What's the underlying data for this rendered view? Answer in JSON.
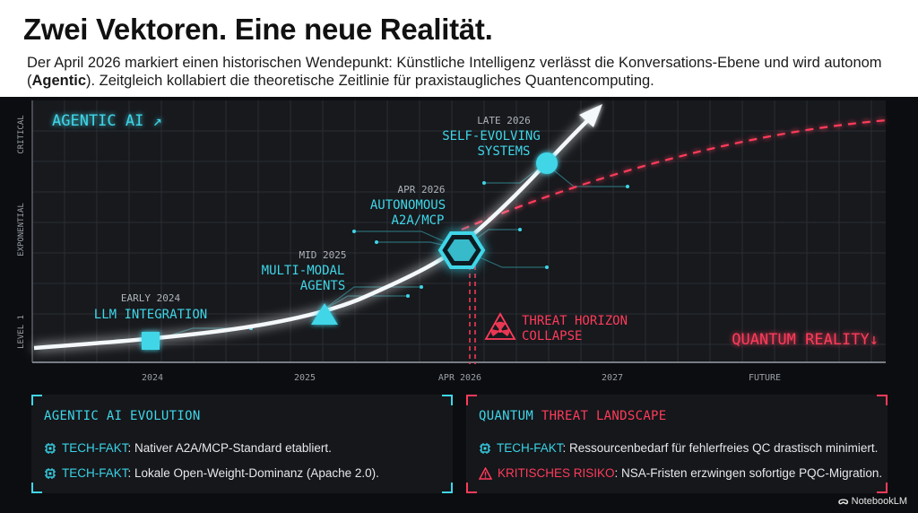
{
  "header": {
    "title": "Zwei Vektoren. Eine neue Realität.",
    "subtitle_part1": "Der April 2026 markiert einen historischen Wendepunkt: Künstliche Intelligenz verlässt die Konversations-Ebene und wird autonom (",
    "subtitle_bold": "Agentic",
    "subtitle_part2": "). Zeitgleich kollabiert die theoretische Zeitlinie für praxistaugliches Quantencomputing."
  },
  "chart": {
    "agentic_label": "AGENTIC AI ↗",
    "quantum_label": "QUANTUM REALITY↓",
    "y_axis_labels": [
      "CRITICAL",
      "EXPONENTIAL",
      "LEVEL 1"
    ],
    "x_axis_labels": [
      "2024",
      "2025",
      "APR 2026",
      "2027",
      "FUTURE"
    ],
    "milestones": [
      {
        "date": "EARLY 2024",
        "name": [
          "LLM INTEGRATION"
        ],
        "shape": "square"
      },
      {
        "date": "MID 2025",
        "name": [
          "MULTI-MODAL",
          "AGENTS"
        ],
        "shape": "triangle"
      },
      {
        "date": "APR 2026",
        "name": [
          "AUTONOMOUS",
          "A2A/MCP"
        ],
        "shape": "hexagon"
      },
      {
        "date": "LATE 2026",
        "name": [
          "SELF-EVOLVING",
          "SYSTEMS"
        ],
        "shape": "circle"
      }
    ],
    "threat": {
      "line1": "THREAT HORIZON",
      "line2": "COLLAPSE",
      "icon": "radiation-icon"
    },
    "colors": {
      "agentic": "#3fd6e8",
      "quantum": "#ff3b5a",
      "curve": "#ffffff"
    }
  },
  "panels": {
    "left": {
      "title": "AGENTIC AI EVOLUTION",
      "facts": [
        {
          "icon": "chip-icon",
          "label": "TECH-FAKT",
          "text": ": Nativer A2A/MCP-Standard etabliert."
        },
        {
          "icon": "chip-icon",
          "label": "TECH-FAKT",
          "text": ": Lokale Open-Weight-Dominanz (Apache 2.0)."
        }
      ]
    },
    "right": {
      "title_part1": "QUANTUM",
      "title_part2": "THREAT LANDSCAPE",
      "facts": [
        {
          "icon": "chip-icon",
          "label": "TECH-FAKT",
          "text": ": Ressourcenbedarf für fehlerfreies QC drastisch minimiert."
        },
        {
          "icon": "warning-icon",
          "label": "KRITISCHES RISIKO",
          "text": ": NSA-Fristen erzwingen sofortige PQC-Migration."
        }
      ]
    }
  },
  "footer": {
    "brand": "NotebookLM"
  }
}
